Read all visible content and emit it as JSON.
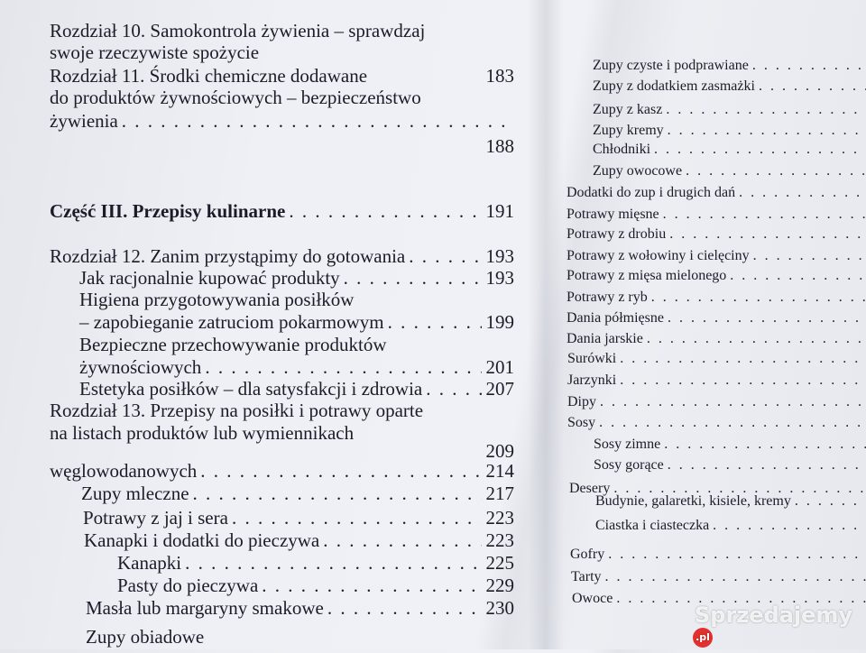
{
  "left": [
    {
      "text": "Rozdział 10. Samokontrola żywienia – sprawdzaj"
    },
    {
      "text": "swoje rzeczywiste spożycie"
    },
    {
      "text": "Rozdział 11. Środki chemiczne dodawane",
      "page": "183"
    },
    {
      "text": "do produktów żywnościowych – bezpieczeństwo"
    },
    {
      "text": "żywienia"
    },
    {
      "page": "188"
    },
    {
      "text": "Część III. Przepisy kulinarne",
      "page": "191"
    },
    {
      "text": "Rozdział 12. Zanim przystąpimy do gotowania",
      "page": "193"
    },
    {
      "text": "Jak racjonalnie kupować produkty",
      "page": "193"
    },
    {
      "text": "Higiena przygotowywania posiłków"
    },
    {
      "text": "– zapobieganie zatruciom pokarmowym",
      "page": "199"
    },
    {
      "text": "Bezpieczne przechowywanie produktów"
    },
    {
      "text": "żywnościowych",
      "page": "201"
    },
    {
      "text": "Estetyka posiłków – dla satysfakcji i zdrowia",
      "page": "207"
    },
    {
      "text": "Rozdział 13. Przepisy na posiłki i potrawy oparte"
    },
    {
      "text": "na listach produktów lub wymiennikach"
    },
    {
      "page": "209"
    },
    {
      "text": "węglowodanowych",
      "page": "214"
    },
    {
      "text": "Zupy mleczne",
      "page": "217"
    },
    {
      "text": "Potrawy z jaj i sera",
      "page": "223"
    },
    {
      "text": "Kanapki i dodatki do pieczywa",
      "page": "223"
    },
    {
      "text": "Kanapki",
      "page": "225"
    },
    {
      "text": "Pasty do pieczywa",
      "page": "229"
    },
    {
      "text": "Masła lub margaryny smakowe",
      "page": "230"
    },
    {
      "text": "Zupy obiadowe"
    }
  ],
  "right": [
    "Zupy czyste i podprawiane",
    "Zupy z dodatkiem zasmażki",
    "Zupy z kasz",
    "Zupy kremy",
    "Chłodniki",
    "Zupy owocowe",
    "Dodatki do zup i drugich dań",
    "Potrawy mięsne",
    "Potrawy z drobiu",
    "Potrawy z wołowiny i cielęciny",
    "Potrawy z mięsa mielonego",
    "Potrawy z ryb",
    "Dania półmięsne",
    "Dania jarskie",
    "Surówki",
    "Jarzynki",
    "Dipy",
    "Sosy",
    "Sosy zimne",
    "Sosy gorące",
    "Desery",
    "Budynie, galaretki, kisiele, kremy",
    "Ciastka i ciasteczka",
    "Gofry",
    "Tarty",
    "Owoce"
  ],
  "watermark": {
    "text": "Sprzedajemy",
    "suffix": ".pl"
  }
}
